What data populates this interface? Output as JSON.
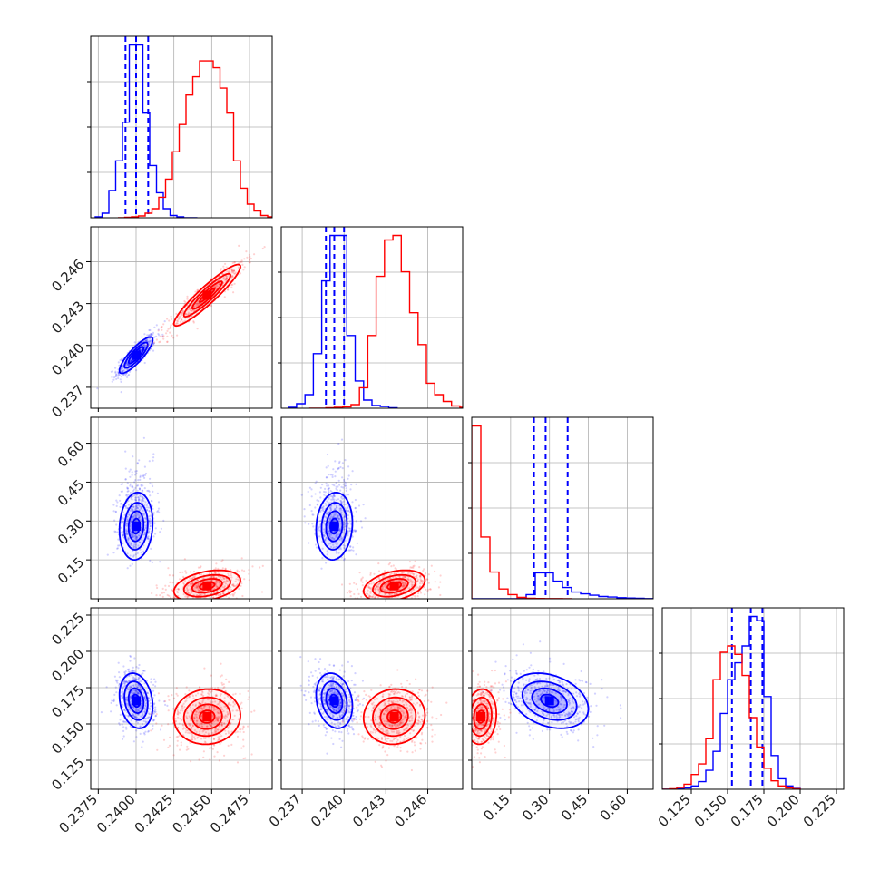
{
  "figure": {
    "background": "#ffffff"
  },
  "colors": {
    "red": "#ff0000",
    "blue": "#0000ff",
    "grid": "#b0b0b0",
    "axis": "#000000"
  },
  "chart_data": {
    "type": "corner",
    "grid": true,
    "parameters": [
      {
        "ticks": [
          0.2375,
          0.24,
          0.2425,
          0.245,
          0.2475
        ],
        "tick_labels": [
          "0.2375",
          "0.2400",
          "0.2425",
          "0.2450",
          "0.2475"
        ],
        "range": [
          0.237,
          0.249
        ]
      },
      {
        "ticks": [
          0.237,
          0.24,
          0.243,
          0.246
        ],
        "tick_labels": [
          "0.237",
          "0.240",
          "0.243",
          "0.246"
        ],
        "range": [
          0.2355,
          0.2485
        ]
      },
      {
        "ticks": [
          0.15,
          0.3,
          0.45,
          0.6
        ],
        "tick_labels": [
          "0.15",
          "0.30",
          "0.45",
          "0.60"
        ],
        "range": [
          0.0,
          0.7
        ]
      },
      {
        "ticks": [
          0.125,
          0.15,
          0.175,
          0.2,
          0.225
        ],
        "tick_labels": [
          "0.125",
          "0.150",
          "0.175",
          "0.200",
          "0.225"
        ],
        "range": [
          0.105,
          0.23
        ]
      }
    ],
    "series": [
      {
        "color": "#0000ff",
        "quantile_lines": [
          [
            0.2393,
            0.24,
            0.2408
          ],
          [
            0.2387,
            0.2393,
            0.24
          ],
          [
            0.24,
            0.285,
            0.37
          ],
          [
            0.153,
            0.166,
            0.174
          ]
        ],
        "hist1d": [
          {
            "bins": [
              0.2373,
              0.23775,
              0.2382,
              0.23865,
              0.2391,
              0.23955,
              0.24,
              0.24045,
              0.2409,
              0.24135,
              0.2418,
              0.24225,
              0.2427,
              0.24315,
              0.2436,
              0.24405
            ],
            "counts": [
              2,
              10,
              60,
              125,
              210,
              380,
              380,
              230,
              115,
              55,
              20,
              5,
              2,
              0,
              0
            ]
          },
          {
            "bins": [
              0.236,
              0.2366,
              0.2372,
              0.2378,
              0.2384,
              0.239,
              0.2396,
              0.2402,
              0.2408,
              0.2414,
              0.242,
              0.2426,
              0.2432,
              0.2438
            ],
            "counts": [
              2,
              10,
              30,
              120,
              280,
              380,
              380,
              160,
              60,
              18,
              6,
              4,
              1
            ]
          },
          {
            "bins": [
              0.0,
              0.035,
              0.07,
              0.105,
              0.14,
              0.175,
              0.21,
              0.245,
              0.28,
              0.315,
              0.35,
              0.385,
              0.42,
              0.455,
              0.49,
              0.525,
              0.56,
              0.595,
              0.63,
              0.665,
              0.7
            ],
            "counts": [
              0,
              0,
              0,
              0,
              0,
              1,
              30,
              185,
              185,
              125,
              80,
              48,
              35,
              25,
              16,
              12,
              8,
              5,
              3,
              1
            ]
          },
          {
            "bins": [
              0.105,
              0.11,
              0.115,
              0.12,
              0.125,
              0.13,
              0.135,
              0.14,
              0.145,
              0.15,
              0.155,
              0.16,
              0.165,
              0.17,
              0.175,
              0.18,
              0.185,
              0.19,
              0.195,
              0.2
            ],
            "counts": [
              0,
              0,
              1,
              3,
              8,
              18,
              45,
              90,
              180,
              260,
              300,
              340,
              410,
              400,
              220,
              80,
              25,
              8,
              2
            ]
          }
        ]
      },
      {
        "color": "#ff0000",
        "quantile_lines": [],
        "hist1d": [
          {
            "bins": [
              0.2388,
              0.23925,
              0.2397,
              0.24015,
              0.2406,
              0.24105,
              0.2415,
              0.24195,
              0.2424,
              0.24285,
              0.2433,
              0.24375,
              0.2442,
              0.24465,
              0.2451,
              0.24555,
              0.246,
              0.24645,
              0.2469,
              0.24735,
              0.2478,
              0.24825,
              0.2487,
              0.24915
            ],
            "counts": [
              0,
              1,
              2,
              4,
              10,
              20,
              45,
              85,
              145,
              205,
              270,
              310,
              345,
              345,
              330,
              285,
              230,
              125,
              65,
              30,
              15,
              5,
              2
            ]
          },
          {
            "bins": [
              0.2375,
              0.2381,
              0.2387,
              0.2393,
              0.2399,
              0.2405,
              0.2411,
              0.2417,
              0.2423,
              0.2429,
              0.2435,
              0.2441,
              0.2447,
              0.2453,
              0.2459,
              0.2465,
              0.2471,
              0.2477,
              0.2483,
              0.2489
            ],
            "counts": [
              0,
              0,
              1,
              2,
              3,
              8,
              45,
              160,
              290,
              370,
              380,
              300,
              210,
              140,
              55,
              30,
              15,
              5,
              2
            ]
          },
          {
            "bins": [
              0.0,
              0.035,
              0.07,
              0.105,
              0.14,
              0.175,
              0.21,
              0.245,
              0.28,
              0.315,
              0.35,
              0.385
            ],
            "counts": [
              1230,
              440,
              190,
              70,
              30,
              10,
              4,
              2,
              1,
              1,
              0
            ]
          },
          {
            "bins": [
              0.105,
              0.11,
              0.115,
              0.12,
              0.125,
              0.13,
              0.135,
              0.14,
              0.145,
              0.15,
              0.155,
              0.16,
              0.165,
              0.17,
              0.175,
              0.18,
              0.185,
              0.19,
              0.195,
              0.2
            ],
            "counts": [
              0,
              1,
              4,
              12,
              35,
              60,
              120,
              260,
              325,
              340,
              320,
              270,
              170,
              100,
              50,
              20,
              8,
              3,
              1
            ]
          }
        ]
      }
    ],
    "clouds": [
      {
        "color": "#0000ff",
        "pairs": [
          {
            "x_param": 0,
            "y_param": 1,
            "center": [
              0.24,
              0.2393
            ],
            "sd": [
              0.00055,
              0.00065
            ],
            "rho": 0.85,
            "contour_radii": [
              0.45,
              0.9,
              1.4,
              2.0
            ]
          },
          {
            "x_param": 0,
            "y_param": 2,
            "center": [
              0.24,
              0.28
            ],
            "sd": [
              0.00055,
              0.065
            ],
            "rho": 0.1,
            "contour_radii": [
              0.45,
              0.9,
              1.4,
              2.0
            ]
          },
          {
            "x_param": 1,
            "y_param": 2,
            "center": [
              0.2393,
              0.28
            ],
            "sd": [
              0.00065,
              0.065
            ],
            "rho": 0.1,
            "contour_radii": [
              0.45,
              0.9,
              1.4,
              2.0
            ]
          },
          {
            "x_param": 0,
            "y_param": 3,
            "center": [
              0.24,
              0.166
            ],
            "sd": [
              0.00055,
              0.0095
            ],
            "rho": -0.2,
            "contour_radii": [
              0.45,
              0.9,
              1.4,
              2.0
            ]
          },
          {
            "x_param": 1,
            "y_param": 3,
            "center": [
              0.2393,
              0.166
            ],
            "sd": [
              0.00065,
              0.0095
            ],
            "rho": -0.2,
            "contour_radii": [
              0.45,
              0.9,
              1.4,
              2.0
            ]
          },
          {
            "x_param": 2,
            "y_param": 3,
            "center": [
              0.3,
              0.166
            ],
            "sd": [
              0.075,
              0.0095
            ],
            "rho": -0.3,
            "contour_radii": [
              0.45,
              0.9,
              1.4,
              2.0
            ]
          }
        ]
      },
      {
        "color": "#ff0000",
        "pairs": [
          {
            "x_param": 0,
            "y_param": 1,
            "center": [
              0.2447,
              0.2436
            ],
            "sd": [
              0.0011,
              0.0011
            ],
            "rho": 0.93,
            "contour_radii": [
              0.45,
              0.9,
              1.4,
              2.0
            ]
          },
          {
            "x_param": 0,
            "y_param": 2,
            "center": [
              0.2447,
              0.05
            ],
            "sd": [
              0.0011,
              0.03
            ],
            "rho": 0.35,
            "contour_radii": [
              0.45,
              0.9,
              1.4,
              2.0
            ]
          },
          {
            "x_param": 1,
            "y_param": 2,
            "center": [
              0.2436,
              0.05
            ],
            "sd": [
              0.0011,
              0.03
            ],
            "rho": 0.35,
            "contour_radii": [
              0.45,
              0.9,
              1.4,
              2.0
            ]
          },
          {
            "x_param": 0,
            "y_param": 3,
            "center": [
              0.2447,
              0.155
            ],
            "sd": [
              0.0011,
              0.0095
            ],
            "rho": 0.05,
            "contour_radii": [
              0.45,
              0.9,
              1.4,
              2.0
            ]
          },
          {
            "x_param": 1,
            "y_param": 3,
            "center": [
              0.2436,
              0.155
            ],
            "sd": [
              0.0011,
              0.0095
            ],
            "rho": 0.05,
            "contour_radii": [
              0.45,
              0.9,
              1.4,
              2.0
            ]
          },
          {
            "x_param": 2,
            "y_param": 3,
            "center": [
              0.035,
              0.155
            ],
            "sd": [
              0.03,
              0.0095
            ],
            "rho": 0.1,
            "contour_radii": [
              0.45,
              0.9,
              1.4,
              2.0
            ]
          }
        ]
      }
    ]
  }
}
